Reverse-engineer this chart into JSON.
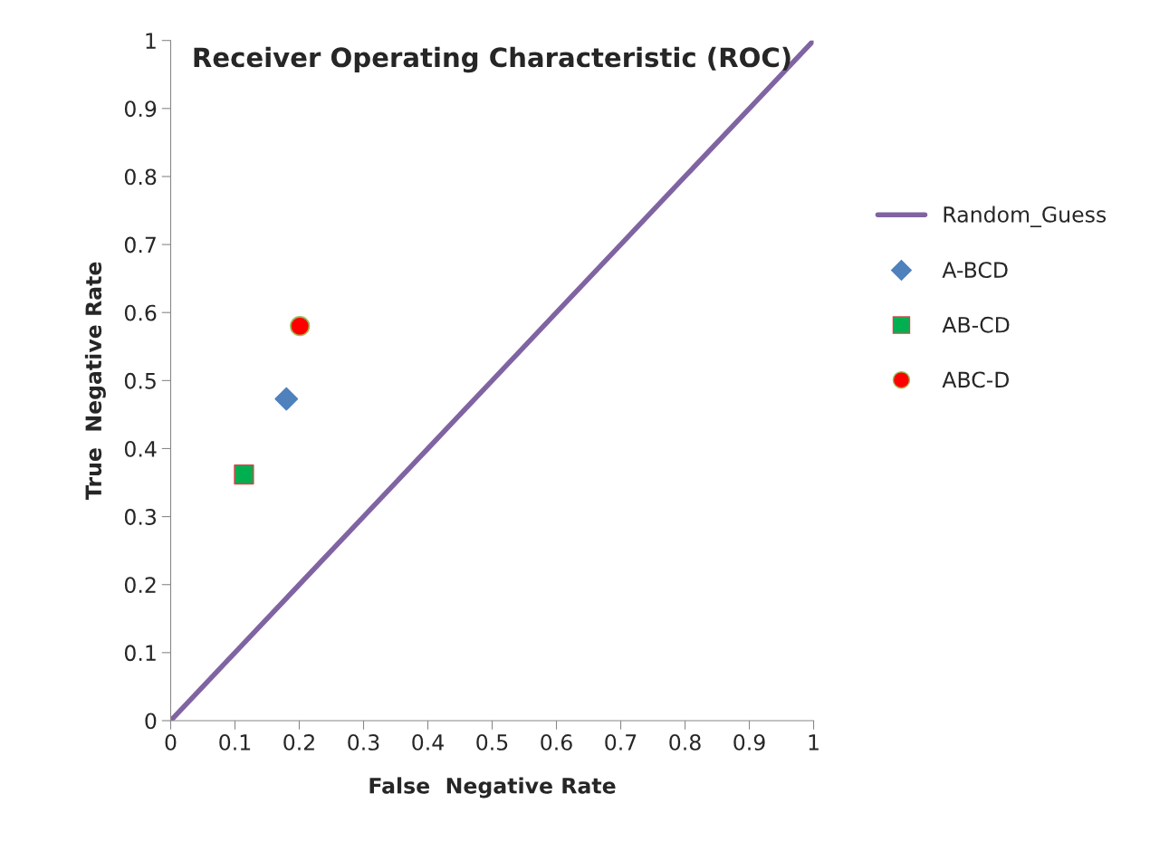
{
  "chart_data": {
    "type": "scatter",
    "title": "Receiver Operating Characteristic (ROC)",
    "xlabel": "False  Negative Rate",
    "ylabel": "True  Negative Rate",
    "series": [
      {
        "name": "Random_Guess",
        "type": "line",
        "color": "#8064a2",
        "line_style": "solid",
        "x": [
          0,
          0.1,
          0.2,
          0.3,
          0.4,
          0.5,
          0.6,
          0.7,
          0.8,
          0.9,
          1
        ],
        "values": [
          0,
          0.1,
          0.2,
          0.3,
          0.4,
          0.5,
          0.6,
          0.7,
          0.8,
          0.9,
          1
        ]
      },
      {
        "name": "A-BCD",
        "color": "#4f81bd",
        "marker": "diamond",
        "x": [
          0.18
        ],
        "values": [
          0.473
        ]
      },
      {
        "name": "AB-CD",
        "color": "#00b050",
        "marker": "square",
        "x": [
          0.114
        ],
        "values": [
          0.362
        ]
      },
      {
        "name": "ABC-D",
        "color": "#ff0000",
        "marker": "circle",
        "x": [
          0.201
        ],
        "values": [
          0.58
        ]
      }
    ],
    "xlim": [
      0,
      1
    ],
    "ylim": [
      0,
      1
    ],
    "xticks": [
      0,
      0.1,
      0.2,
      0.3,
      0.4,
      0.5,
      0.6,
      0.7,
      0.8,
      0.9,
      1
    ],
    "yticks": [
      0,
      0.1,
      0.2,
      0.3,
      0.4,
      0.5,
      0.6,
      0.7,
      0.8,
      0.9,
      1
    ],
    "grid": false,
    "legend": "right"
  }
}
